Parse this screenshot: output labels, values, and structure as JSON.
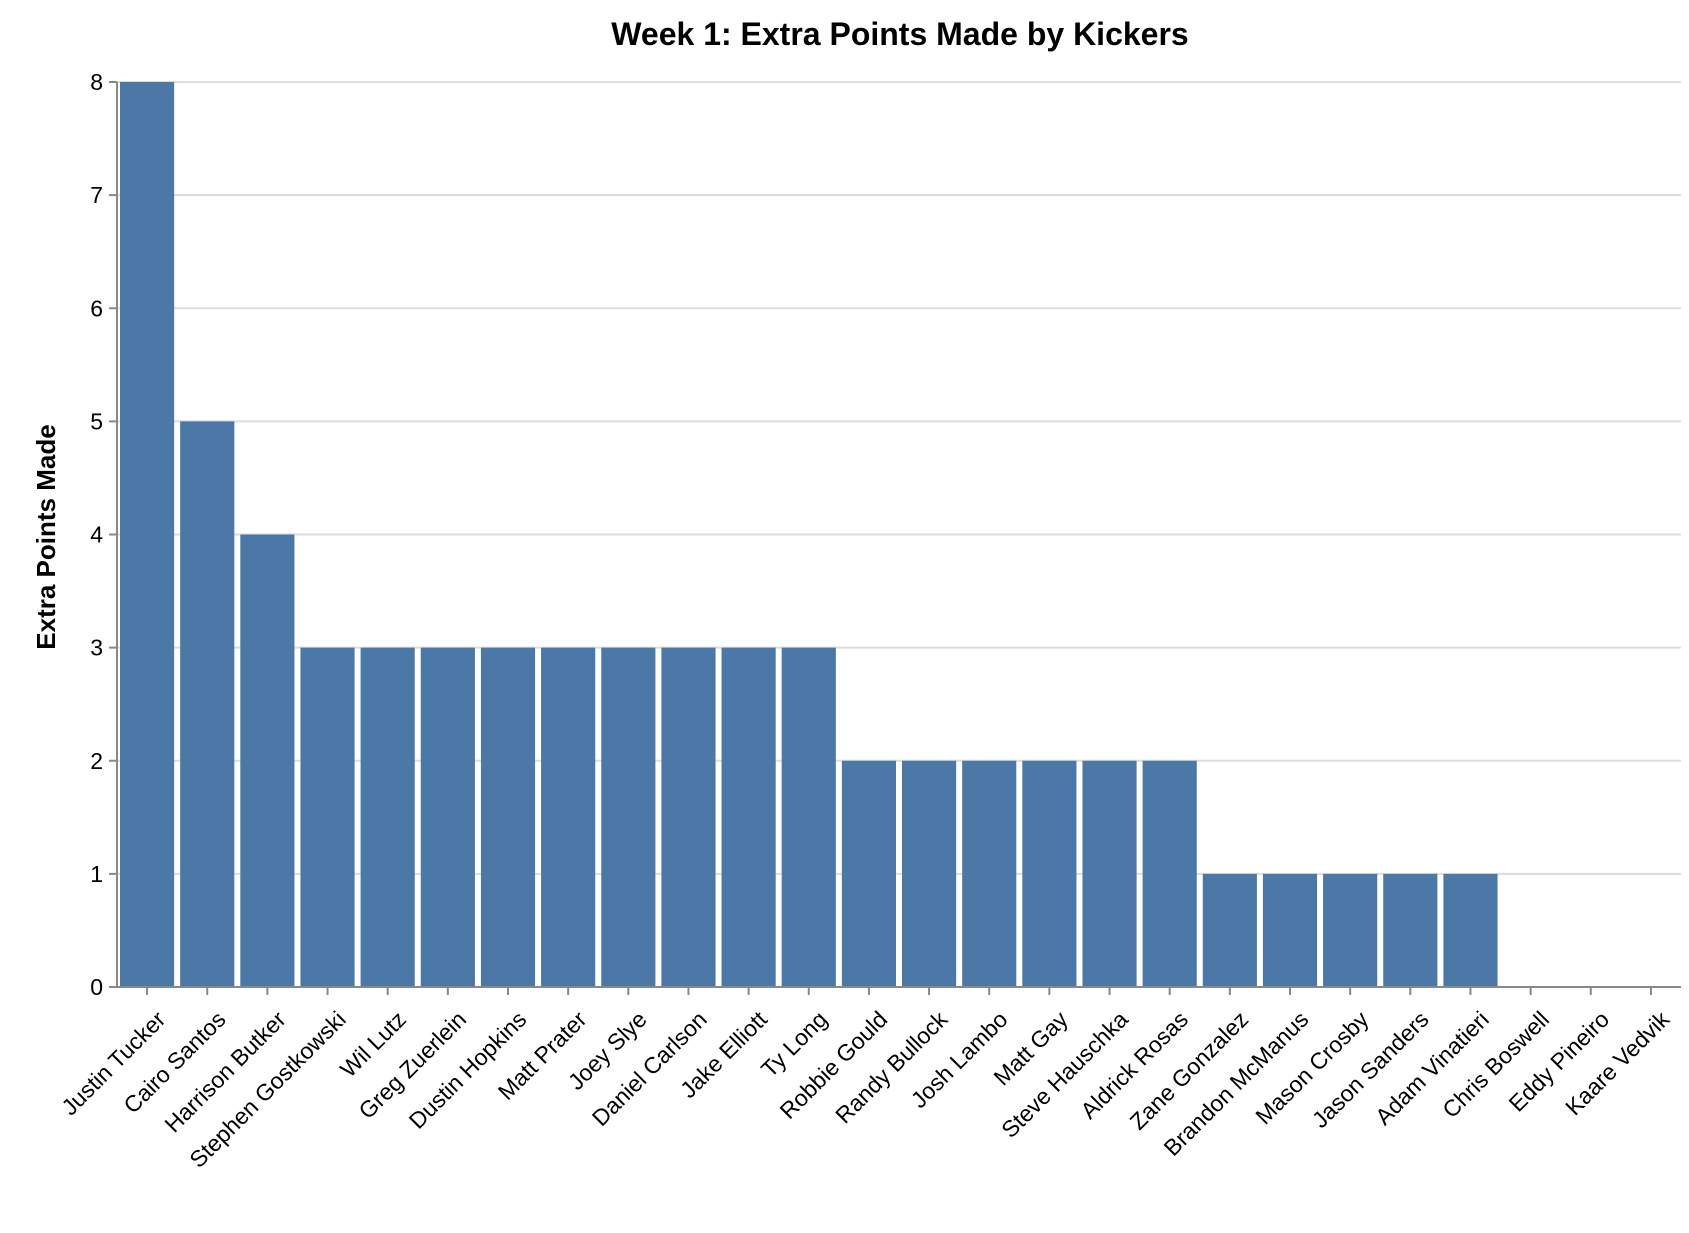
{
  "chart_data": {
    "type": "bar",
    "title": "Week 1: Extra Points Made by Kickers",
    "xlabel": "",
    "ylabel": "Extra Points Made",
    "ylim": [
      0,
      8
    ],
    "yticks": [
      0,
      1,
      2,
      3,
      4,
      5,
      6,
      7,
      8
    ],
    "grid": true,
    "bar_color": "#4c78a8",
    "categories": [
      "Justin Tucker",
      "Cairo Santos",
      "Harrison Butker",
      "Stephen Gostkowski",
      "Wil Lutz",
      "Greg Zuerlein",
      "Dustin Hopkins",
      "Matt Prater",
      "Joey Slye",
      "Daniel Carlson",
      "Jake Elliott",
      "Ty Long",
      "Robbie Gould",
      "Randy Bullock",
      "Josh Lambo",
      "Matt Gay",
      "Steve Hauschka",
      "Aldrick Rosas",
      "Zane Gonzalez",
      "Brandon McManus",
      "Mason Crosby",
      "Jason Sanders",
      "Adam Vinatieri",
      "Chris Boswell",
      "Eddy Pineiro",
      "Kaare Vedvik"
    ],
    "values": [
      8,
      5,
      4,
      3,
      3,
      3,
      3,
      3,
      3,
      3,
      3,
      3,
      2,
      2,
      2,
      2,
      2,
      2,
      1,
      1,
      1,
      1,
      1,
      0,
      0,
      0
    ]
  }
}
